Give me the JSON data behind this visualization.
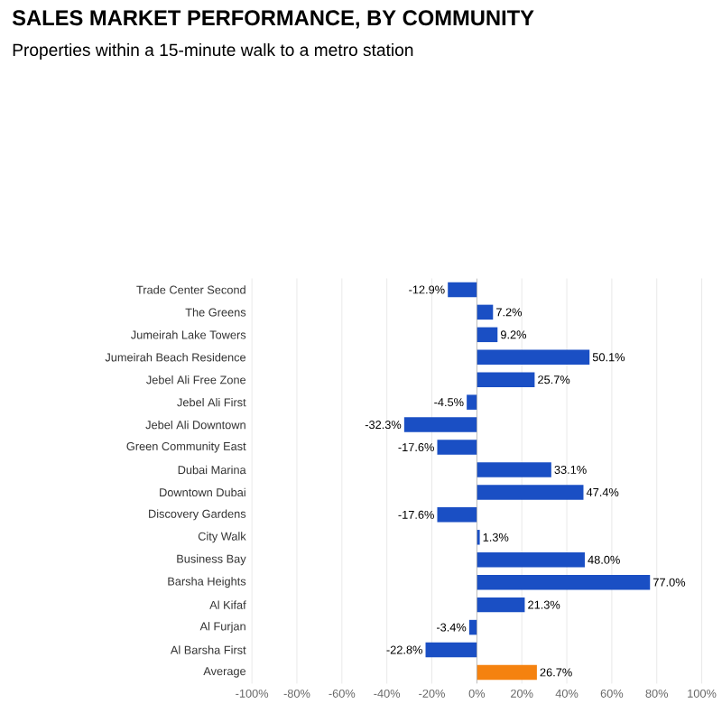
{
  "chart_data": {
    "type": "bar",
    "orientation": "horizontal",
    "title": "SALES MARKET PERFORMANCE, BY COMMUNITY",
    "subtitle": "Properties within a 15-minute walk to a metro station",
    "categories": [
      "Trade Center Second",
      "The Greens",
      "Jumeirah Lake Towers",
      "Jumeirah Beach Residence",
      "Jebel Ali Free Zone",
      "Jebel Ali First",
      "Jebel Ali Downtown",
      "Green Community East",
      "Dubai Marina",
      "Downtown Dubai",
      "Discovery Gardens",
      "City Walk",
      "Business Bay",
      "Barsha Heights",
      "Al Kifaf",
      "Al Furjan",
      "Al Barsha First",
      "Average"
    ],
    "values": [
      -12.9,
      7.2,
      9.2,
      50.1,
      25.7,
      -4.5,
      -32.3,
      -17.6,
      33.1,
      47.4,
      -17.6,
      1.3,
      48.0,
      77.0,
      21.3,
      -3.4,
      -22.8,
      26.7
    ],
    "value_labels": [
      "-12.9%",
      "7.2%",
      "9.2%",
      "50.1%",
      "25.7%",
      "-4.5%",
      "-32.3%",
      "-17.6%",
      "33.1%",
      "47.4%",
      "-17.6%",
      "1.3%",
      "48.0%",
      "77.0%",
      "21.3%",
      "-3.4%",
      "-22.8%",
      "26.7%"
    ],
    "colors": [
      "#1a4fc4",
      "#1a4fc4",
      "#1a4fc4",
      "#1a4fc4",
      "#1a4fc4",
      "#1a4fc4",
      "#1a4fc4",
      "#1a4fc4",
      "#1a4fc4",
      "#1a4fc4",
      "#1a4fc4",
      "#1a4fc4",
      "#1a4fc4",
      "#1a4fc4",
      "#1a4fc4",
      "#1a4fc4",
      "#1a4fc4",
      "#f5820f"
    ],
    "xlim": [
      -100,
      100
    ],
    "xticks": [
      {
        "value": -100,
        "label": "-100%"
      },
      {
        "value": -80,
        "label": "-80%"
      },
      {
        "value": -60,
        "label": "-60%"
      },
      {
        "value": -40,
        "label": "-40%"
      },
      {
        "value": -20,
        "label": "-20%"
      },
      {
        "value": 0,
        "label": "0%"
      },
      {
        "value": 20,
        "label": "20%"
      },
      {
        "value": 40,
        "label": "40%"
      },
      {
        "value": 60,
        "label": "60%"
      },
      {
        "value": 80,
        "label": "80%"
      },
      {
        "value": 100,
        "label": "100%"
      }
    ],
    "grid": "x"
  }
}
